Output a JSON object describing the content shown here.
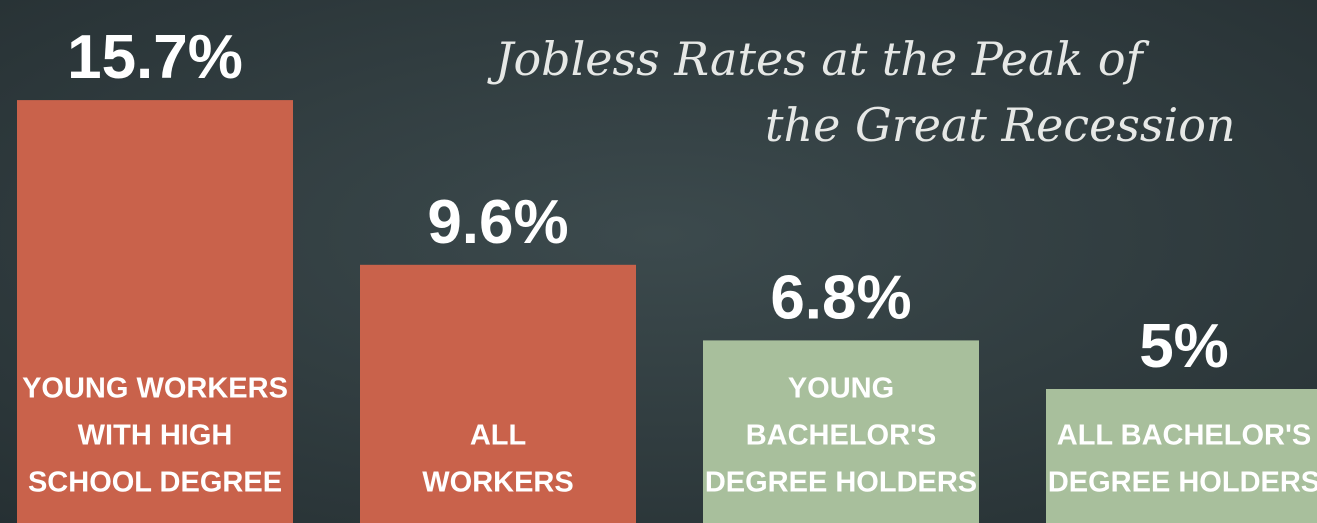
{
  "chart_data": {
    "type": "bar",
    "title": [
      "Jobless Rates at the Peak of",
      "the Great Recession"
    ],
    "categories": [
      [
        "YOUNG WORKERS",
        "WITH HIGH",
        "SCHOOL DEGREE"
      ],
      [
        "ALL",
        "WORKERS"
      ],
      [
        "YOUNG",
        "BACHELOR'S",
        "DEGREE HOLDERS"
      ],
      [
        "ALL BACHELOR'S",
        "DEGREE HOLDERS"
      ]
    ],
    "values": [
      15.7,
      9.6,
      6.8,
      5
    ],
    "value_labels": [
      "15.7%",
      "9.6%",
      "6.8%",
      "5%"
    ],
    "colors": [
      "#c9624b",
      "#c9624b",
      "#a8bf9c",
      "#a8bf9c"
    ]
  }
}
